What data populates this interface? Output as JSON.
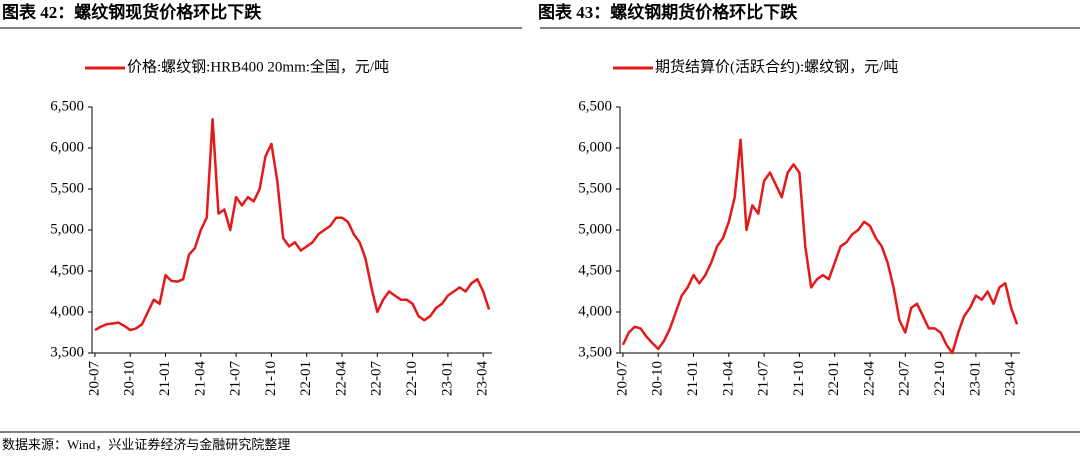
{
  "chart_data": [
    {
      "type": "line",
      "title": "图表 42：螺纹钢现货价格环比下跌",
      "categories": [
        "20-07",
        null,
        null,
        null,
        null,
        null,
        "20-10",
        null,
        null,
        null,
        null,
        null,
        "21-01",
        null,
        null,
        null,
        null,
        null,
        "21-04",
        null,
        null,
        null,
        null,
        null,
        "21-07",
        null,
        null,
        null,
        null,
        null,
        "21-10",
        null,
        null,
        null,
        null,
        null,
        "22-01",
        null,
        null,
        null,
        null,
        null,
        "22-04",
        null,
        null,
        null,
        null,
        null,
        "22-07",
        null,
        null,
        null,
        null,
        null,
        "22-10",
        null,
        null,
        null,
        null,
        null,
        "23-01",
        null,
        null,
        null,
        null,
        null,
        "23-04",
        null
      ],
      "series": [
        {
          "name": "价格:螺纹钢:HRB400 20mm:全国，元/吨",
          "color": "#e3191b",
          "values": [
            3780,
            3820,
            3850,
            3860,
            3870,
            3830,
            3780,
            3800,
            3850,
            4000,
            4150,
            4100,
            4450,
            4380,
            4370,
            4400,
            4700,
            4780,
            5000,
            5150,
            6350,
            5200,
            5250,
            5000,
            5400,
            5300,
            5400,
            5350,
            5500,
            5900,
            6050,
            5600,
            4900,
            4800,
            4850,
            4750,
            4800,
            4850,
            4950,
            5000,
            5050,
            5150,
            5150,
            5100,
            4950,
            4850,
            4650,
            4300,
            4000,
            4150,
            4250,
            4200,
            4150,
            4150,
            4100,
            3950,
            3900,
            3950,
            4050,
            4100,
            4200,
            4250,
            4300,
            4250,
            4350,
            4400,
            4250,
            4030
          ]
        }
      ],
      "ylim": [
        3500,
        6500
      ],
      "yticks": [
        {
          "value": 3500,
          "label": "3,500"
        },
        {
          "value": 4000,
          "label": "4,000"
        },
        {
          "value": 4500,
          "label": "4,500"
        },
        {
          "value": 5000,
          "label": "5,000"
        },
        {
          "value": 5500,
          "label": "5,500"
        },
        {
          "value": 6000,
          "label": "6,000"
        },
        {
          "value": 6500,
          "label": "6,500"
        }
      ],
      "grid": false
    },
    {
      "type": "line",
      "title": "图表 43：螺纹钢期货价格环比下跌",
      "categories": [
        "20-07",
        null,
        null,
        null,
        null,
        null,
        "20-10",
        null,
        null,
        null,
        null,
        null,
        "21-01",
        null,
        null,
        null,
        null,
        null,
        "21-04",
        null,
        null,
        null,
        null,
        null,
        "21-07",
        null,
        null,
        null,
        null,
        null,
        "21-10",
        null,
        null,
        null,
        null,
        null,
        "22-01",
        null,
        null,
        null,
        null,
        null,
        "22-04",
        null,
        null,
        null,
        null,
        null,
        "22-07",
        null,
        null,
        null,
        null,
        null,
        "22-10",
        null,
        null,
        null,
        null,
        null,
        "23-01",
        null,
        null,
        null,
        null,
        null,
        "23-04",
        null
      ],
      "series": [
        {
          "name": "期货结算价(活跃合约):螺纹钢，元/吨",
          "color": "#e3191b",
          "values": [
            3600,
            3750,
            3820,
            3800,
            3700,
            3620,
            3550,
            3650,
            3800,
            4000,
            4200,
            4300,
            4450,
            4350,
            4450,
            4600,
            4800,
            4900,
            5100,
            5400,
            6100,
            5000,
            5300,
            5200,
            5600,
            5700,
            5550,
            5400,
            5700,
            5800,
            5700,
            4800,
            4300,
            4400,
            4450,
            4400,
            4600,
            4800,
            4850,
            4950,
            5000,
            5100,
            5050,
            4900,
            4800,
            4600,
            4300,
            3900,
            3750,
            4050,
            4100,
            3950,
            3800,
            3800,
            3750,
            3600,
            3500,
            3750,
            3950,
            4050,
            4200,
            4150,
            4250,
            4100,
            4300,
            4350,
            4050,
            3850
          ]
        }
      ],
      "ylim": [
        3500,
        6500
      ],
      "yticks": [
        {
          "value": 3500,
          "label": "3,500"
        },
        {
          "value": 4000,
          "label": "4,000"
        },
        {
          "value": 4500,
          "label": "4,500"
        },
        {
          "value": 5000,
          "label": "5,000"
        },
        {
          "value": 5500,
          "label": "5,500"
        },
        {
          "value": 6000,
          "label": "6,000"
        },
        {
          "value": 6500,
          "label": "6,500"
        }
      ],
      "grid": false
    }
  ],
  "source": "数据来源：Wind，兴业证券经济与金融研究院整理"
}
